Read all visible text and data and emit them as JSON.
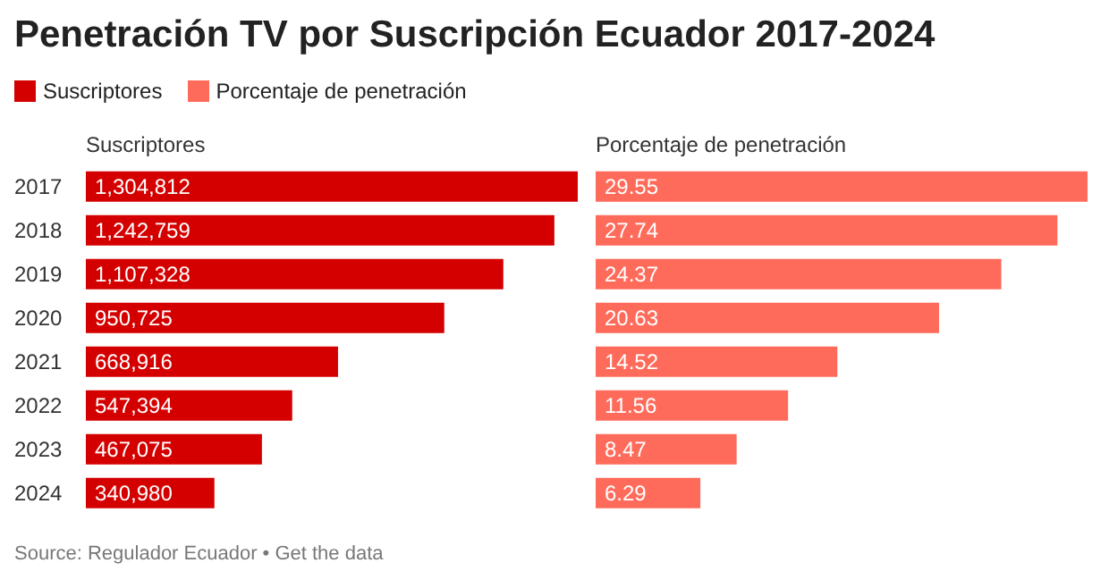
{
  "chart_data": [
    {
      "type": "bar",
      "orientation": "horizontal",
      "title": "Penetración TV por Suscripción Ecuador 2017-2024",
      "categories": [
        "2017",
        "2018",
        "2019",
        "2020",
        "2021",
        "2022",
        "2023",
        "2024"
      ],
      "series": [
        {
          "name": "Suscriptores",
          "color": "#d40000",
          "values": [
            1304812,
            1242759,
            1107328,
            950725,
            668916,
            547394,
            467075,
            340980
          ],
          "value_labels": [
            "1,304,812",
            "1,242,759",
            "1,107,328",
            "950,725",
            "668,916",
            "547,394",
            "467,075",
            "340,980"
          ]
        }
      ],
      "legend": "top left",
      "tick_labels": "y",
      "grid": false,
      "annotations": [
        "Source: Regulador Ecuador • Get the data"
      ]
    },
    {
      "type": "bar",
      "orientation": "horizontal",
      "categories": [
        "2017",
        "2018",
        "2019",
        "2020",
        "2021",
        "2022",
        "2023",
        "2024"
      ],
      "series": [
        {
          "name": "Porcentaje de penetración",
          "color": "#ff6b5b",
          "values": [
            29.55,
            27.74,
            24.37,
            20.63,
            14.52,
            11.56,
            8.47,
            6.29
          ]
        }
      ],
      "data_labels": true,
      "tick_labels": false,
      "grid": false
    }
  ]
}
